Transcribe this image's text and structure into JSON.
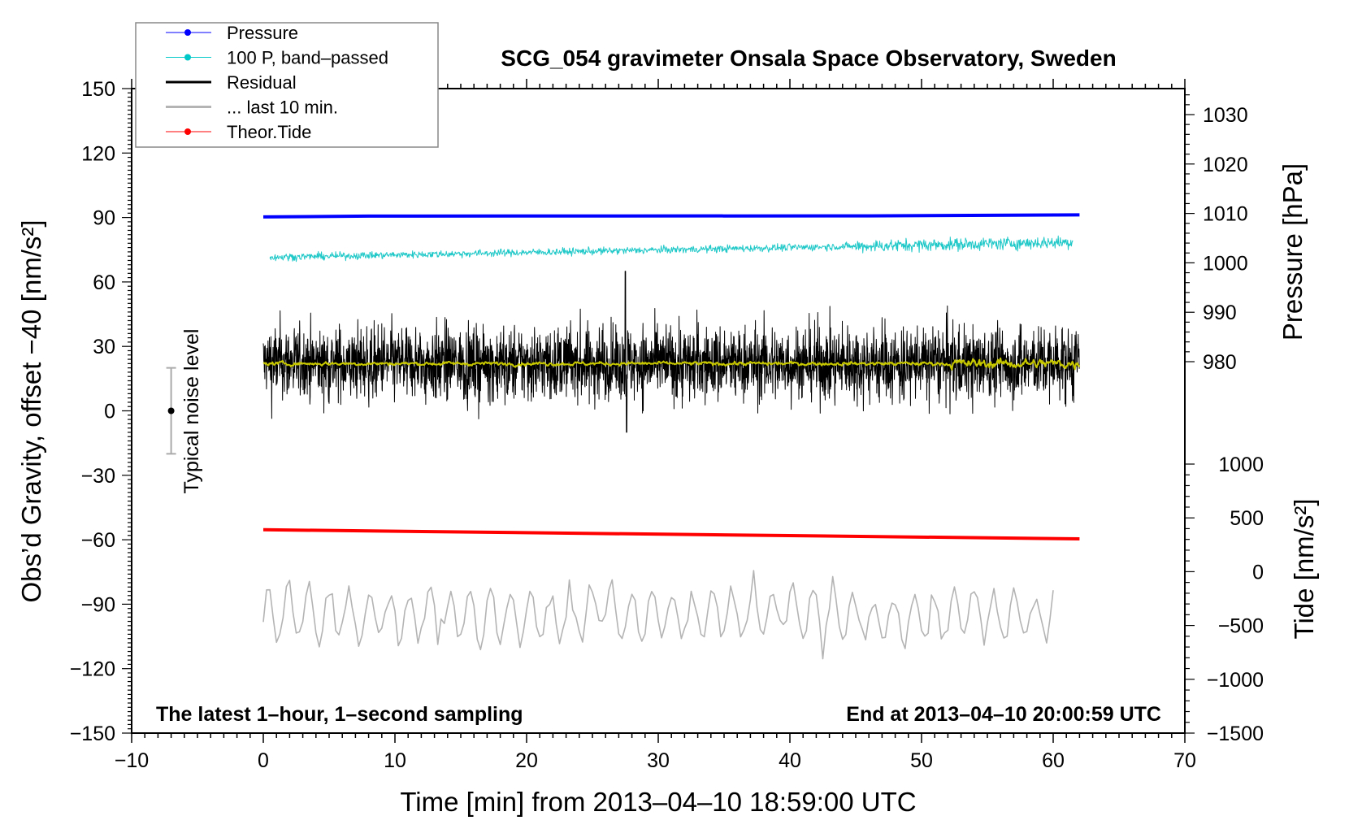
{
  "chart_data": {
    "type": "line",
    "title": "SCG_054 gravimeter Onsala Space Observatory, Sweden",
    "xlabel": "Time [min] from 2013–04–10 18:59:00 UTC",
    "ylabel_left": "Obs’d Gravity, offset −40 [nm/s²]",
    "ylabel_right_pressure": "Pressure [hPa]",
    "ylabel_right_tide": "Tide [nm/s²]",
    "xlim": [
      -10,
      70
    ],
    "ylim": [
      -150,
      150
    ],
    "pressure_axis_range": [
      980,
      1030
    ],
    "tide_axis_range": [
      -1500,
      1000
    ],
    "x_ticks": [
      "−10",
      "0",
      "10",
      "20",
      "30",
      "40",
      "50",
      "60",
      "70"
    ],
    "y_ticks_left": [
      "150",
      "120",
      "90",
      "60",
      "30",
      "0",
      "−30",
      "−60",
      "−90",
      "−120",
      "−150"
    ],
    "y_ticks_pressure": [
      "1030",
      "1020",
      "1010",
      "1000",
      "990",
      "980"
    ],
    "y_ticks_tide": [
      "1000",
      "500",
      "0",
      "−500",
      "−1000",
      "−1500"
    ],
    "annotations": {
      "bottom_left": "The latest 1–hour, 1–second sampling",
      "bottom_right": "End at 2013–04–10 20:00:59 UTC",
      "noise_label": "Typical noise level"
    },
    "noise_bar": {
      "x": -7,
      "center": 0,
      "half_range": 20
    },
    "legend": {
      "placement": "top-left",
      "entries": [
        {
          "label": "Pressure",
          "color": "#0000ff",
          "marker": true
        },
        {
          "label": "100 P, band–passed",
          "color": "#00c8c8",
          "marker": true
        },
        {
          "label": "Residual",
          "color": "#000000",
          "marker": false
        },
        {
          "label": "... last 10 min.",
          "color": "#b4b4b4",
          "marker": false
        },
        {
          "label": "Theor.Tide",
          "color": "#ff0000",
          "marker": true
        }
      ]
    },
    "series": [
      {
        "name": "Pressure",
        "axis": "pressure",
        "color": "#0000ff",
        "x": [
          0,
          8,
          46,
          62
        ],
        "values": [
          1009.3,
          1009.45,
          1009.5,
          1009.7
        ]
      },
      {
        "name": "100 P, band-passed",
        "axis": "left",
        "color": "#20c8c8",
        "x_range": [
          0.5,
          61.5
        ],
        "trend": [
          71.5,
          78.5
        ],
        "noise_amplitude": 1.5
      },
      {
        "name": "Residual",
        "axis": "left",
        "color": "#000000",
        "x_range": [
          0,
          62
        ],
        "mean": 22,
        "noise_amplitude": 12,
        "min": -10,
        "max": 65
      },
      {
        "name": "Residual smoothed",
        "axis": "left",
        "color": "#c8c800",
        "x_range": [
          0,
          62
        ],
        "mean": 22,
        "noise_amplitude": 1.5
      },
      {
        "name": "Theor.Tide",
        "axis": "tide",
        "color": "#ff0000",
        "x": [
          0,
          62
        ],
        "values": [
          390,
          305
        ]
      },
      {
        "name": "... last 10 min.",
        "axis": "left",
        "color": "#b4b4b4",
        "x_range": [
          0,
          60
        ],
        "mean": -95,
        "noise_amplitude": 12,
        "min": -116,
        "max": -68
      }
    ]
  }
}
